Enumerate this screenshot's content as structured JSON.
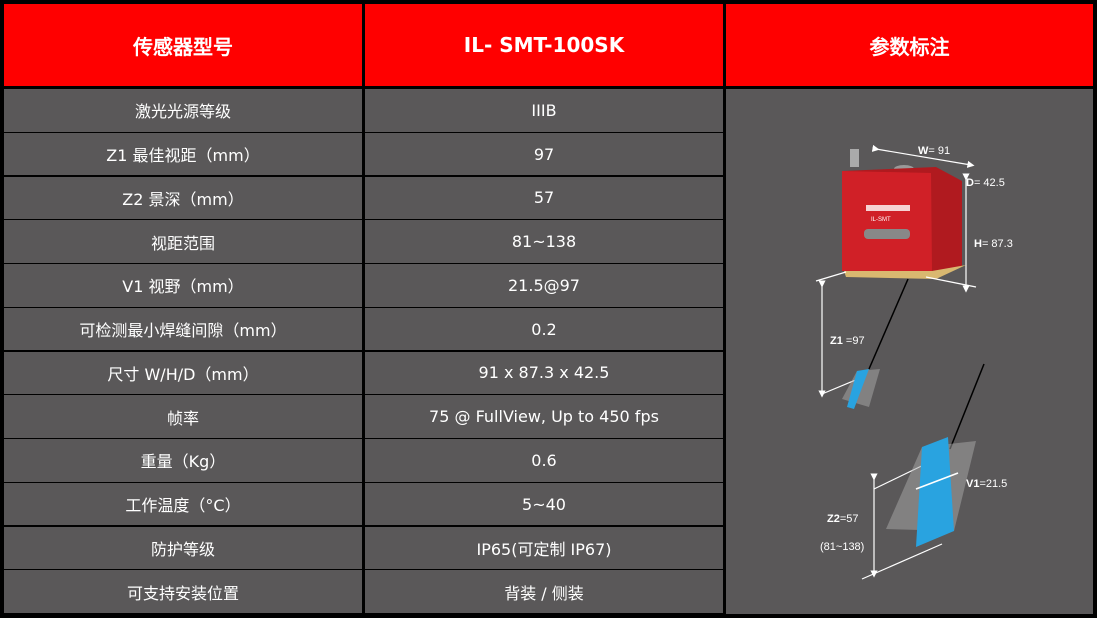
{
  "header": {
    "col1": "传感器型号",
    "col2": "IL- SMT-100SK",
    "col3": "参数标注"
  },
  "rows": [
    {
      "label": "激光光源等级",
      "value": "IIIB"
    },
    {
      "label": "Z1 最佳视距（mm）",
      "value": "97"
    },
    {
      "label": "Z2 景深（mm）",
      "value": "57"
    },
    {
      "label": "视距范围",
      "value": "81~138"
    },
    {
      "label": "V1 视野（mm）",
      "value": "21.5@97"
    },
    {
      "label": "可检测最小焊缝间隙（mm）",
      "value": "0.2"
    },
    {
      "label": "尺寸 W/H/D（mm）",
      "value": "91 x 87.3 x 42.5"
    },
    {
      "label": "帧率",
      "value": "75 @ FullView, Up to 450 fps"
    },
    {
      "label": "重量（Kg）",
      "value": "0.6"
    },
    {
      "label": "工作温度（°C）",
      "value": "5~40"
    },
    {
      "label": "防护等级",
      "value": "IP65(可定制 IP67)"
    },
    {
      "label": "可支持安装位置",
      "value": "背装 / 侧装"
    }
  ],
  "diagram": {
    "w_key": "W",
    "w_val": "= 91",
    "d_key": "D",
    "d_val": "= 42.5",
    "h_key": "H",
    "h_val": "= 87.3",
    "z1_key": "Z1",
    "z1_val": " =97",
    "z2_key": "Z2",
    "z2_val": "=57",
    "range": "(81~138)",
    "v1_key": "V1",
    "v1_val": "=21.5",
    "logo_text": "IL-SMT"
  },
  "colors": {
    "header": "#ff0000",
    "cell": "#5a5859",
    "sensor": "#c8161d",
    "beam": "#29a3e0"
  }
}
